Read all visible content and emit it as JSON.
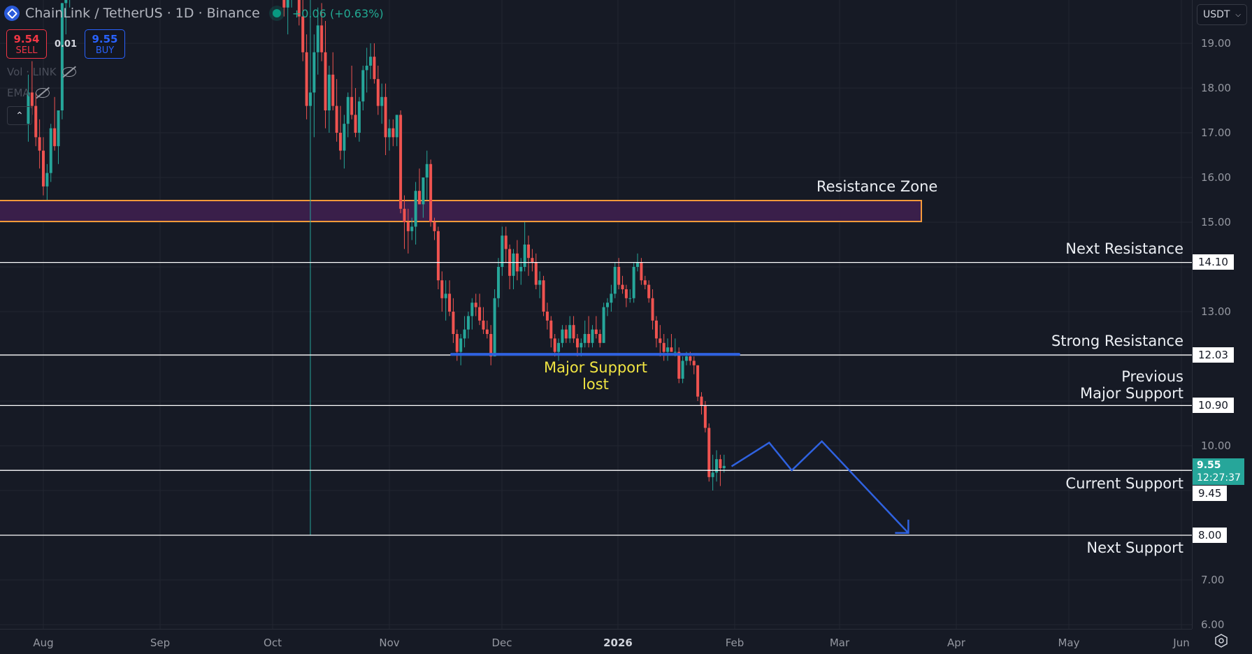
{
  "header": {
    "symbol": "ChainLink / TetherUS · 1D · Binance",
    "change": "+0.06 (+0.63%)"
  },
  "trade": {
    "sell_price": "9.54",
    "sell_label": "SELL",
    "spread": "0.01",
    "buy_price": "9.55",
    "buy_label": "BUY"
  },
  "indicators": {
    "vol": "Vol · LINK",
    "ema": "EMA"
  },
  "price_axis": {
    "currency": "USDT",
    "ticks": [
      "19.00",
      "18.00",
      "17.00",
      "16.00",
      "15.00",
      "13.00",
      "10.00",
      "7.00",
      "6.00"
    ],
    "level_tags": [
      "14.10",
      "12.03",
      "10.90",
      "9.45",
      "8.00"
    ],
    "last_price": "9.55",
    "countdown": "12:27:37"
  },
  "time_axis": {
    "labels": [
      "Aug",
      "Sep",
      "Oct",
      "Nov",
      "Dec",
      "2026",
      "Feb",
      "Mar",
      "Apr",
      "May",
      "Jun"
    ]
  },
  "annotations": {
    "resistance_zone": "Resistance Zone",
    "next_resistance": "Next Resistance",
    "strong_resistance": "Strong Resistance",
    "previous_major_support_l1": "Previous",
    "previous_major_support_l2": "Major Support",
    "current_support": "Current Support",
    "next_support": "Next Support",
    "major_support_lost_l1": "Major Support",
    "major_support_lost_l2": "lost"
  },
  "colors": {
    "background": "#161a25",
    "grid": "#222631",
    "up": "#26a69a",
    "down": "#ef5350",
    "zone_fill": "#3a1f4a",
    "zone_border": "#f59a3a",
    "projection": "#2f62e0",
    "level_line": "#ffffff",
    "label_yellow": "#f0e442"
  },
  "chart_data": {
    "type": "candlestick",
    "title": "ChainLink / TetherUS · 1D · Binance",
    "xlabel": "",
    "ylabel": "USDT",
    "ylim": [
      6.0,
      19.9
    ],
    "x_ticks": [
      "Aug",
      "Sep",
      "Oct",
      "Nov",
      "Dec",
      "2026",
      "Feb",
      "Mar",
      "Apr",
      "May",
      "Jun"
    ],
    "y_ticks": [
      6,
      7,
      8,
      9,
      10,
      11,
      12,
      13,
      14,
      15,
      16,
      17,
      18,
      19
    ],
    "levels": [
      {
        "name": "Resistance Zone",
        "low": 15.0,
        "high": 15.5
      },
      {
        "name": "Next Resistance",
        "price": 14.1
      },
      {
        "name": "Strong Resistance",
        "price": 12.03
      },
      {
        "name": "Previous Major Support",
        "price": 10.9
      },
      {
        "name": "Current Support",
        "price": 9.45
      },
      {
        "name": "Next Support",
        "price": 8.0
      }
    ],
    "major_support_lost": {
      "price": 12.03,
      "from_day": 108,
      "to_day": 185
    },
    "projection_path": [
      [
        187,
        9.54
      ],
      [
        197,
        10.07
      ],
      [
        203,
        9.45
      ],
      [
        211,
        10.1
      ],
      [
        234,
        8.05
      ]
    ],
    "last_price": 9.55,
    "candles_start": "2025-07-28",
    "ohlc": [
      [
        17.2,
        18.3,
        16.8,
        17.9
      ],
      [
        17.9,
        18.6,
        17.4,
        17.6
      ],
      [
        17.6,
        17.9,
        16.7,
        16.9
      ],
      [
        16.9,
        17.3,
        16.2,
        16.6
      ],
      [
        16.6,
        16.9,
        15.6,
        15.8
      ],
      [
        15.8,
        16.3,
        15.5,
        16.1
      ],
      [
        16.1,
        17.2,
        15.9,
        17.1
      ],
      [
        17.1,
        17.8,
        16.6,
        16.7
      ],
      [
        16.7,
        17.5,
        16.3,
        17.5
      ],
      [
        17.5,
        19.9,
        17.3,
        19.9
      ],
      [
        19.9,
        20.6,
        19.2,
        20.2
      ],
      [
        20.2,
        22.0,
        19.8,
        21.8
      ],
      [
        21.8,
        23.5,
        21.0,
        23.0
      ],
      [
        23.0,
        24.5,
        22.0,
        23.6
      ],
      [
        23.6,
        25.0,
        22.8,
        24.6
      ],
      [
        24.6,
        25.5,
        23.0,
        23.4
      ],
      [
        23.4,
        24.2,
        22.4,
        23.9
      ],
      [
        23.9,
        25.8,
        23.5,
        25.2
      ],
      [
        25.2,
        26.5,
        24.4,
        25.0
      ],
      [
        25.0,
        25.6,
        23.8,
        24.1
      ],
      [
        24.1,
        24.8,
        23.2,
        23.6
      ],
      [
        23.6,
        24.5,
        22.8,
        24.3
      ],
      [
        24.3,
        25.4,
        24.0,
        24.8
      ],
      [
        24.8,
        25.2,
        23.4,
        23.7
      ],
      [
        23.7,
        24.4,
        22.6,
        22.9
      ],
      [
        22.9,
        23.8,
        22.5,
        23.5
      ],
      [
        23.5,
        24.2,
        22.8,
        23.0
      ],
      [
        23.0,
        23.6,
        21.9,
        22.2
      ],
      [
        22.2,
        22.9,
        21.5,
        22.7
      ],
      [
        22.7,
        23.5,
        22.3,
        23.2
      ],
      [
        23.2,
        24.1,
        22.9,
        23.8
      ],
      [
        23.8,
        24.3,
        22.6,
        22.8
      ],
      [
        22.8,
        23.5,
        22.1,
        23.3
      ],
      [
        23.3,
        24.0,
        22.7,
        22.9
      ],
      [
        22.9,
        23.4,
        21.8,
        22.0
      ],
      [
        22.0,
        22.6,
        21.3,
        22.4
      ],
      [
        22.4,
        23.2,
        22.0,
        22.9
      ],
      [
        22.9,
        23.6,
        22.4,
        23.4
      ],
      [
        23.4,
        24.1,
        22.9,
        23.1
      ],
      [
        23.1,
        23.8,
        22.5,
        23.5
      ],
      [
        23.5,
        24.2,
        23.0,
        23.8
      ],
      [
        23.8,
        24.0,
        22.6,
        22.9
      ],
      [
        22.9,
        23.5,
        22.2,
        22.5
      ],
      [
        22.5,
        23.1,
        21.8,
        22.1
      ],
      [
        22.1,
        22.7,
        21.4,
        21.8
      ],
      [
        21.8,
        22.3,
        21.1,
        21.4
      ],
      [
        21.4,
        22.0,
        20.7,
        21.7
      ],
      [
        21.7,
        22.5,
        21.3,
        22.2
      ],
      [
        22.2,
        22.8,
        21.6,
        21.9
      ],
      [
        21.9,
        22.4,
        21.0,
        21.3
      ],
      [
        21.3,
        21.9,
        20.5,
        20.9
      ],
      [
        20.9,
        21.6,
        20.4,
        21.4
      ],
      [
        21.4,
        22.1,
        21.0,
        21.8
      ],
      [
        21.8,
        22.5,
        21.4,
        22.0
      ],
      [
        22.0,
        22.6,
        21.3,
        21.5
      ],
      [
        21.5,
        22.0,
        20.8,
        21.1
      ],
      [
        21.1,
        21.8,
        20.6,
        21.6
      ],
      [
        21.6,
        22.4,
        21.2,
        22.1
      ],
      [
        22.1,
        22.9,
        21.8,
        22.6
      ],
      [
        22.6,
        23.1,
        21.9,
        22.2
      ],
      [
        22.2,
        22.7,
        21.4,
        21.6
      ],
      [
        21.6,
        22.3,
        21.0,
        21.9
      ],
      [
        21.9,
        22.5,
        21.5,
        22.3
      ],
      [
        22.3,
        22.8,
        21.7,
        21.9
      ],
      [
        21.9,
        22.2,
        20.9,
        21.1
      ],
      [
        21.1,
        21.6,
        20.3,
        20.5
      ],
      [
        20.5,
        21.2,
        20.0,
        20.9
      ],
      [
        20.9,
        21.4,
        20.3,
        20.6
      ],
      [
        20.6,
        21.0,
        19.6,
        19.8
      ],
      [
        19.8,
        20.4,
        19.2,
        20.1
      ],
      [
        20.1,
        20.8,
        19.8,
        20.6
      ],
      [
        20.6,
        21.1,
        20.0,
        20.3
      ],
      [
        20.3,
        20.7,
        19.4,
        19.6
      ],
      [
        19.6,
        20.1,
        18.6,
        18.8
      ],
      [
        18.8,
        19.2,
        17.3,
        17.6
      ],
      [
        17.6,
        20.3,
        8.0,
        17.9
      ],
      [
        17.9,
        19.2,
        16.9,
        18.8
      ],
      [
        18.8,
        19.8,
        18.3,
        19.4
      ],
      [
        19.4,
        19.9,
        18.6,
        18.8
      ],
      [
        18.8,
        19.5,
        17.1,
        17.5
      ],
      [
        17.5,
        18.5,
        17.0,
        18.3
      ],
      [
        18.3,
        18.8,
        17.5,
        17.6
      ],
      [
        17.6,
        18.2,
        16.8,
        17.0
      ],
      [
        17.0,
        17.6,
        16.4,
        16.6
      ],
      [
        16.6,
        17.4,
        16.2,
        17.2
      ],
      [
        17.2,
        17.9,
        16.9,
        17.8
      ],
      [
        17.8,
        18.5,
        17.3,
        17.4
      ],
      [
        17.4,
        18.0,
        16.9,
        17.0
      ],
      [
        17.0,
        17.8,
        16.8,
        17.7
      ],
      [
        17.7,
        18.5,
        17.5,
        18.4
      ],
      [
        18.4,
        18.9,
        17.9,
        18.5
      ],
      [
        18.5,
        19.0,
        18.2,
        18.7
      ],
      [
        18.7,
        19.0,
        18.1,
        18.2
      ],
      [
        18.2,
        18.5,
        17.4,
        17.6
      ],
      [
        17.6,
        18.1,
        17.2,
        17.8
      ],
      [
        17.8,
        18.1,
        16.5,
        16.9
      ],
      [
        16.9,
        17.3,
        16.6,
        17.1
      ],
      [
        17.1,
        17.3,
        16.7,
        16.9
      ],
      [
        16.9,
        17.4,
        16.7,
        17.4
      ],
      [
        17.4,
        17.5,
        15.2,
        15.3
      ],
      [
        15.3,
        15.6,
        14.4,
        15.0
      ],
      [
        15.0,
        15.3,
        14.3,
        14.8
      ],
      [
        14.8,
        15.1,
        14.6,
        14.9
      ],
      [
        14.9,
        15.9,
        14.5,
        15.7
      ],
      [
        15.7,
        16.2,
        15.4,
        15.4
      ],
      [
        15.4,
        16.0,
        15.1,
        16.0
      ],
      [
        16.0,
        16.6,
        15.5,
        16.3
      ],
      [
        16.3,
        16.4,
        14.9,
        15.0
      ],
      [
        15.0,
        15.1,
        14.6,
        14.8
      ],
      [
        14.8,
        14.9,
        13.5,
        13.7
      ],
      [
        13.7,
        13.9,
        13.0,
        13.3
      ],
      [
        13.3,
        13.7,
        12.8,
        13.4
      ],
      [
        13.4,
        13.7,
        12.9,
        13.0
      ],
      [
        13.0,
        13.3,
        12.3,
        12.5
      ],
      [
        12.5,
        12.6,
        11.9,
        12.1
      ],
      [
        12.1,
        12.5,
        11.8,
        12.4
      ],
      [
        12.4,
        12.9,
        12.2,
        12.6
      ],
      [
        12.6,
        13.0,
        12.4,
        12.9
      ],
      [
        12.9,
        13.3,
        12.6,
        13.2
      ],
      [
        13.2,
        13.4,
        12.9,
        13.1
      ],
      [
        13.1,
        13.4,
        12.7,
        12.8
      ],
      [
        12.8,
        13.1,
        12.5,
        12.6
      ],
      [
        12.6,
        12.8,
        12.4,
        12.5
      ],
      [
        12.5,
        12.7,
        11.8,
        12.0
      ],
      [
        12.0,
        13.5,
        12.0,
        13.3
      ],
      [
        13.3,
        14.2,
        13.1,
        14.0
      ],
      [
        14.0,
        14.9,
        13.8,
        14.7
      ],
      [
        14.7,
        14.9,
        14.1,
        14.4
      ],
      [
        14.4,
        14.5,
        13.5,
        13.8
      ],
      [
        13.8,
        14.4,
        13.5,
        14.3
      ],
      [
        14.3,
        14.6,
        13.7,
        13.9
      ],
      [
        13.9,
        14.2,
        13.6,
        14.0
      ],
      [
        14.0,
        15.0,
        13.9,
        14.5
      ],
      [
        14.5,
        14.7,
        13.8,
        14.2
      ],
      [
        14.2,
        14.4,
        13.9,
        14.1
      ],
      [
        14.1,
        14.3,
        13.5,
        13.6
      ],
      [
        13.6,
        13.9,
        13.3,
        13.7
      ],
      [
        13.7,
        13.8,
        12.9,
        13.0
      ],
      [
        13.0,
        13.2,
        12.6,
        12.8
      ],
      [
        12.8,
        12.9,
        12.2,
        12.4
      ],
      [
        12.4,
        12.5,
        12.0,
        12.1
      ],
      [
        12.1,
        12.4,
        11.9,
        12.3
      ],
      [
        12.3,
        12.7,
        12.2,
        12.6
      ],
      [
        12.6,
        12.7,
        12.3,
        12.4
      ],
      [
        12.4,
        12.9,
        12.3,
        12.7
      ],
      [
        12.7,
        12.9,
        12.3,
        12.4
      ],
      [
        12.4,
        12.5,
        12.0,
        12.2
      ],
      [
        12.2,
        12.4,
        12.0,
        12.3
      ],
      [
        12.3,
        12.8,
        12.2,
        12.5
      ],
      [
        12.5,
        12.9,
        12.2,
        12.3
      ],
      [
        12.3,
        12.7,
        12.2,
        12.6
      ],
      [
        12.6,
        12.9,
        12.4,
        12.5
      ],
      [
        12.5,
        12.6,
        12.2,
        12.3
      ],
      [
        12.3,
        13.2,
        12.3,
        13.1
      ],
      [
        13.1,
        13.3,
        12.9,
        13.2
      ],
      [
        13.2,
        13.6,
        13.0,
        13.4
      ],
      [
        13.4,
        14.1,
        13.3,
        14.0
      ],
      [
        14.0,
        14.2,
        13.5,
        13.6
      ],
      [
        13.6,
        13.8,
        13.4,
        13.5
      ],
      [
        13.5,
        13.6,
        13.1,
        13.3
      ],
      [
        13.3,
        13.5,
        13.2,
        13.3
      ],
      [
        13.3,
        14.1,
        13.2,
        14.0
      ],
      [
        14.0,
        14.3,
        13.9,
        14.1
      ],
      [
        14.1,
        14.2,
        13.6,
        13.7
      ],
      [
        13.7,
        13.8,
        13.5,
        13.6
      ],
      [
        13.6,
        13.7,
        13.2,
        13.3
      ],
      [
        13.3,
        13.5,
        12.6,
        12.8
      ],
      [
        12.8,
        12.9,
        12.2,
        12.4
      ],
      [
        12.4,
        12.7,
        12.0,
        12.3
      ],
      [
        12.3,
        12.5,
        11.9,
        12.1
      ],
      [
        12.1,
        12.4,
        11.9,
        12.2
      ],
      [
        12.2,
        12.5,
        12.1,
        12.1
      ],
      [
        12.1,
        12.4,
        12.0,
        12.1
      ],
      [
        12.1,
        12.2,
        11.4,
        11.5
      ],
      [
        11.5,
        12.0,
        11.4,
        11.9
      ],
      [
        11.9,
        12.1,
        11.8,
        12.0
      ],
      [
        12.0,
        12.1,
        11.8,
        11.9
      ],
      [
        11.9,
        12.0,
        11.6,
        11.8
      ],
      [
        11.8,
        11.8,
        11.0,
        11.1
      ],
      [
        11.1,
        11.2,
        10.7,
        10.9
      ],
      [
        10.9,
        11.0,
        10.3,
        10.4
      ],
      [
        10.4,
        10.5,
        9.2,
        9.3
      ],
      [
        9.3,
        9.8,
        9.0,
        9.4
      ],
      [
        9.4,
        9.9,
        9.2,
        9.7
      ],
      [
        9.7,
        9.8,
        9.1,
        9.5
      ],
      [
        9.5,
        9.8,
        9.4,
        9.55
      ]
    ]
  }
}
